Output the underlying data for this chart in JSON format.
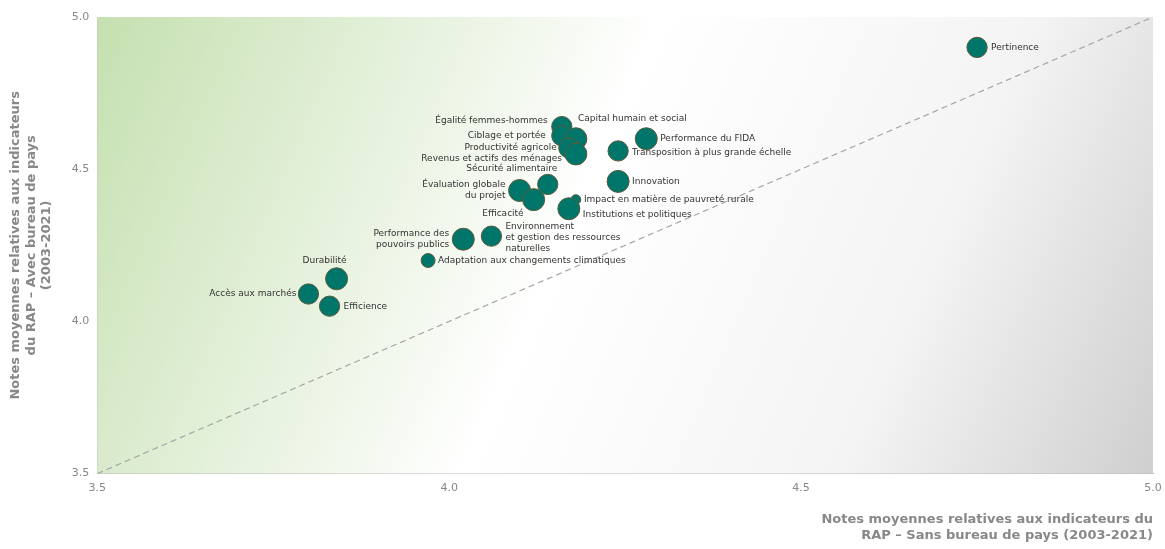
{
  "chart_data": {
    "type": "bubble",
    "xlabel": "Notes moyennes relatives aux indicateurs du\nRAP – Sans bureau de pays (2003-2021)",
    "ylabel": "Notes moyennes relatives aux indicateurs\ndu RAP – Avec bureau de pays\n(2003-2021)",
    "xlim": [
      3.5,
      5
    ],
    "ylim": [
      3.5,
      5
    ],
    "xticks": [
      3.5,
      {
        "value": 4,
        "label": "4.0"
      },
      4.5,
      {
        "value": 5,
        "label": "5.0"
      }
    ],
    "yticks": [
      3.5,
      {
        "value": 4,
        "label": "4.0"
      },
      4.5,
      {
        "value": 5,
        "label": "5.0"
      }
    ],
    "grid": false,
    "legend": false,
    "series": [
      {
        "color": "#00766a",
        "x": [
          4.75,
          4.16,
          4.16,
          4.18,
          4.17,
          4.18,
          4.28,
          4.24,
          4.24,
          4.14,
          4.1,
          4.12,
          4.18,
          4.17,
          4.02,
          4.06,
          3.97,
          3.84,
          3.8,
          3.83
        ],
        "values": [
          4.9,
          4.64,
          4.61,
          4.6,
          4.57,
          4.55,
          4.6,
          4.56,
          4.46,
          4.45,
          4.43,
          4.4,
          4.4,
          4.37,
          4.27,
          4.28,
          4.2,
          4.14,
          4.09,
          4.05
        ],
        "sizes": [
          0.85,
          0.85,
          0.85,
          1,
          0.85,
          1,
          1,
          0.85,
          1,
          0.85,
          1,
          1,
          0.2,
          1,
          1,
          0.85,
          0.4,
          1,
          0.85,
          0.85
        ]
      },
      {
        "type": "line",
        "color": "#a6a6a6",
        "x": [
          3.5,
          5
        ],
        "values": [
          3.5,
          5
        ],
        "line_style": "dashed",
        "marker": "none"
      }
    ],
    "annotations": [
      {
        "text": "Pertinence",
        "x": 4.75,
        "y": 4.9
      },
      {
        "text": "Égalité femmes-hommes",
        "x": 4.16,
        "y": 4.64
      },
      {
        "text": "Ciblage et portée",
        "x": 4.16,
        "y": 4.61
      },
      {
        "text": "Capital humain et social",
        "x": 4.18,
        "y": 4.6
      },
      {
        "text": "Productivité agricole",
        "x": 4.17,
        "y": 4.57
      },
      {
        "text": "Revenus et actifs des ménages",
        "x": 4.18,
        "y": 4.55
      },
      {
        "text": "Performance du FIDA",
        "x": 4.28,
        "y": 4.6
      },
      {
        "text": "Transposition à plus grande échelle",
        "x": 4.24,
        "y": 4.56
      },
      {
        "text": "Innovation",
        "x": 4.24,
        "y": 4.46
      },
      {
        "text": "Sécurité alimentaire",
        "x": 4.14,
        "y": 4.45
      },
      {
        "text": "Évaluation globale\ndu projet",
        "x": 4.1,
        "y": 4.43
      },
      {
        "text": "Efficacité",
        "x": 4.12,
        "y": 4.4
      },
      {
        "text": "Impact en matière de pauvreté rurale",
        "x": 4.18,
        "y": 4.4
      },
      {
        "text": "Institutions et politiques",
        "x": 4.17,
        "y": 4.37
      },
      {
        "text": "Performance des\npouvoirs publics",
        "x": 4.02,
        "y": 4.27
      },
      {
        "text": "Environnement\net gestion des ressources\nnaturelles",
        "x": 4.06,
        "y": 4.28
      },
      {
        "text": "Adaptation aux changements climatiques",
        "x": 3.97,
        "y": 4.2
      },
      {
        "text": "Durabilité",
        "x": 3.84,
        "y": 4.14
      },
      {
        "text": "Accès aux marchés",
        "x": 3.8,
        "y": 4.09
      },
      {
        "text": "Efficience",
        "x": 3.83,
        "y": 4.05
      }
    ]
  }
}
